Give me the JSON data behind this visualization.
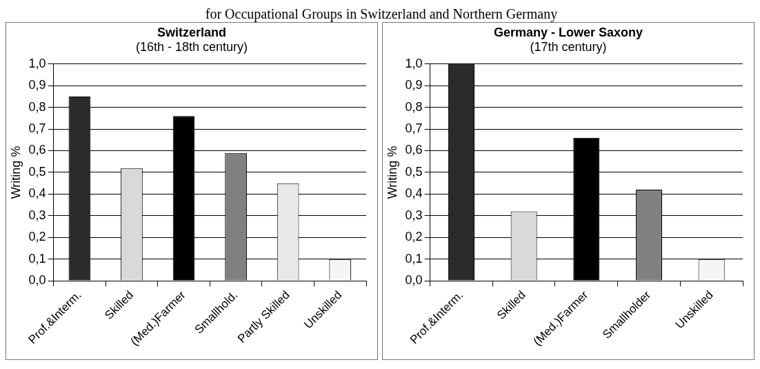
{
  "chart_data": [
    {
      "type": "bar",
      "title": "Switzerland",
      "subtitle": "(16th - 18th century)",
      "ylabel": "Writing %",
      "annotations": [
        "for Occupational Groups in Switzerland and Northern Germany"
      ],
      "categories": [
        "Prof.&Interm.",
        "Skilled",
        "(Med.)Farmer",
        "Smallhold.",
        "Partly Skilled",
        "Unskilled"
      ],
      "values": [
        0.85,
        0.52,
        0.76,
        0.59,
        0.45,
        0.1
      ],
      "colors": [
        "#2b2b2b",
        "#d9d9d9",
        "#000000",
        "#808080",
        "#e8e8e8",
        "#f5f5f5"
      ],
      "ylim": [
        0,
        1
      ],
      "yticks": [
        {
          "value": 0,
          "label": "0,0"
        },
        {
          "value": 0.1,
          "label": "0,1"
        },
        {
          "value": 0.2,
          "label": "0,2"
        },
        {
          "value": 0.3,
          "label": "0,3"
        },
        {
          "value": 0.4,
          "label": "0,4"
        },
        {
          "value": 0.5,
          "label": "0,5"
        },
        {
          "value": 0.6,
          "label": "0,6"
        },
        {
          "value": 0.7,
          "label": "0,7"
        },
        {
          "value": 0.8,
          "label": "0,8"
        },
        {
          "value": 0.9,
          "label": "0,9"
        },
        {
          "value": 1,
          "label": "1,0"
        }
      ],
      "grid": "y",
      "legend": false
    },
    {
      "type": "bar",
      "title": "Germany - Lower Saxony",
      "subtitle": "(17th century)",
      "ylabel": "Writing %",
      "categories": [
        "Prof.&Interm.",
        "Skilled",
        "(Med.)Farmer",
        "Smallholder",
        "Unskilled"
      ],
      "values": [
        1.0,
        0.32,
        0.66,
        0.42,
        0.1
      ],
      "colors": [
        "#2b2b2b",
        "#d9d9d9",
        "#000000",
        "#808080",
        "#f5f5f5"
      ],
      "ylim": [
        0,
        1
      ],
      "yticks": [
        {
          "value": 0,
          "label": "0,0"
        },
        {
          "value": 0.1,
          "label": "0,1"
        },
        {
          "value": 0.2,
          "label": "0,2"
        },
        {
          "value": 0.3,
          "label": "0,3"
        },
        {
          "value": 0.4,
          "label": "0,4"
        },
        {
          "value": 0.5,
          "label": "0,5"
        },
        {
          "value": 0.6,
          "label": "0,6"
        },
        {
          "value": 0.7,
          "label": "0,7"
        },
        {
          "value": 0.8,
          "label": "0,8"
        },
        {
          "value": 0.9,
          "label": "0,9"
        },
        {
          "value": 1,
          "label": "1,0"
        }
      ],
      "grid": "y",
      "legend": false
    }
  ]
}
